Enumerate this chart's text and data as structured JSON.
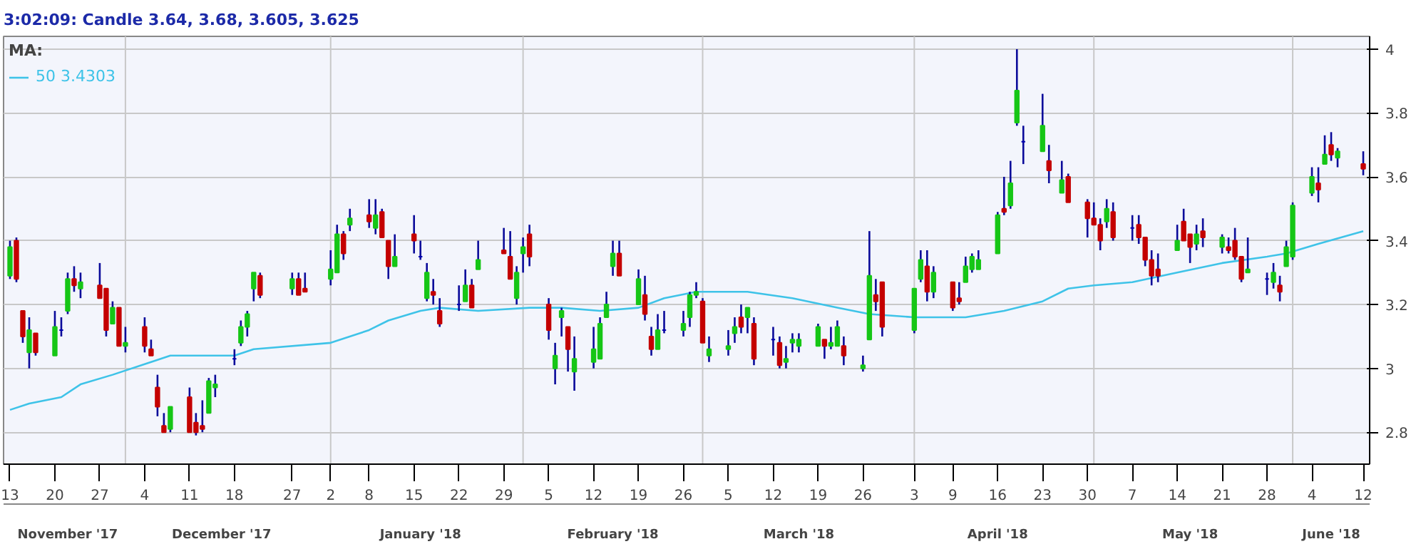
{
  "chart_data": {
    "type": "candlestick",
    "title": "3:02:09:  Candle 3.64, 3.68, 3.605, 3.625",
    "legend_title": "MA:",
    "legend": "top left",
    "x": [
      "2017-11-13",
      "2017-11-14",
      "2017-11-15",
      "2017-11-16",
      "2017-11-17",
      "2017-11-20",
      "2017-11-21",
      "2017-11-22",
      "2017-11-23",
      "2017-11-24",
      "2017-11-27",
      "2017-11-28",
      "2017-11-29",
      "2017-11-30",
      "2017-12-01",
      "2017-12-04",
      "2017-12-05",
      "2017-12-06",
      "2017-12-07",
      "2017-12-08",
      "2017-12-11",
      "2017-12-12",
      "2017-12-13",
      "2017-12-14",
      "2017-12-15",
      "2017-12-18",
      "2017-12-19",
      "2017-12-20",
      "2017-12-21",
      "2017-12-22",
      "2017-12-27",
      "2017-12-28",
      "2017-12-29",
      "2018-01-02",
      "2018-01-03",
      "2018-01-04",
      "2018-01-05",
      "2018-01-08",
      "2018-01-09",
      "2018-01-10",
      "2018-01-11",
      "2018-01-12",
      "2018-01-15",
      "2018-01-16",
      "2018-01-17",
      "2018-01-18",
      "2018-01-19",
      "2018-01-22",
      "2018-01-23",
      "2018-01-24",
      "2018-01-25",
      "2018-01-29",
      "2018-01-30",
      "2018-01-31",
      "2018-02-01",
      "2018-02-02",
      "2018-02-05",
      "2018-02-06",
      "2018-02-07",
      "2018-02-08",
      "2018-02-09",
      "2018-02-12",
      "2018-02-13",
      "2018-02-14",
      "2018-02-15",
      "2018-02-16",
      "2018-02-19",
      "2018-02-20",
      "2018-02-21",
      "2018-02-22",
      "2018-02-23",
      "2018-02-26",
      "2018-02-27",
      "2018-02-28",
      "2018-03-01",
      "2018-03-02",
      "2018-03-05",
      "2018-03-06",
      "2018-03-07",
      "2018-03-08",
      "2018-03-09",
      "2018-03-12",
      "2018-03-13",
      "2018-03-14",
      "2018-03-15",
      "2018-03-16",
      "2018-03-19",
      "2018-03-20",
      "2018-03-21",
      "2018-03-22",
      "2018-03-23",
      "2018-03-26",
      "2018-03-27",
      "2018-03-28",
      "2018-03-29",
      "2018-04-03",
      "2018-04-04",
      "2018-04-05",
      "2018-04-06",
      "2018-04-09",
      "2018-04-10",
      "2018-04-11",
      "2018-04-12",
      "2018-04-13",
      "2018-04-16",
      "2018-04-17",
      "2018-04-18",
      "2018-04-19",
      "2018-04-20",
      "2018-04-23",
      "2018-04-24",
      "2018-04-26",
      "2018-04-27",
      "2018-04-30",
      "2018-05-01",
      "2018-05-02",
      "2018-05-03",
      "2018-05-04",
      "2018-05-07",
      "2018-05-08",
      "2018-05-09",
      "2018-05-10",
      "2018-05-11",
      "2018-05-14",
      "2018-05-15",
      "2018-05-16",
      "2018-05-17",
      "2018-05-18",
      "2018-05-21",
      "2018-05-22",
      "2018-05-23",
      "2018-05-24",
      "2018-05-25",
      "2018-05-28",
      "2018-05-29",
      "2018-05-30",
      "2018-05-31",
      "2018-06-01",
      "2018-06-04",
      "2018-06-05",
      "2018-06-06",
      "2018-06-07",
      "2018-06-08",
      "2018-06-12"
    ],
    "ohlc": [
      [
        3.29,
        3.4,
        3.28,
        3.38
      ],
      [
        3.4,
        3.41,
        3.27,
        3.28
      ],
      [
        3.18,
        3.18,
        3.08,
        3.1
      ],
      [
        3.05,
        3.16,
        3.0,
        3.12
      ],
      [
        3.11,
        3.11,
        3.04,
        3.05
      ],
      [
        3.04,
        3.18,
        3.04,
        3.13
      ],
      [
        3.12,
        3.16,
        3.1,
        3.12
      ],
      [
        3.18,
        3.3,
        3.17,
        3.28
      ],
      [
        3.28,
        3.32,
        3.24,
        3.26
      ],
      [
        3.25,
        3.3,
        3.22,
        3.27
      ],
      [
        3.26,
        3.33,
        3.22,
        3.22
      ],
      [
        3.25,
        3.25,
        3.1,
        3.12
      ],
      [
        3.14,
        3.21,
        3.14,
        3.19
      ],
      [
        3.19,
        3.19,
        3.07,
        3.07
      ],
      [
        3.07,
        3.13,
        3.05,
        3.08
      ],
      [
        3.13,
        3.16,
        3.05,
        3.07
      ],
      [
        3.06,
        3.09,
        3.04,
        3.04
      ],
      [
        2.94,
        2.98,
        2.85,
        2.88
      ],
      [
        2.82,
        2.86,
        2.8,
        2.8
      ],
      [
        2.81,
        2.88,
        2.8,
        2.88
      ],
      [
        2.91,
        2.94,
        2.8,
        2.8
      ],
      [
        2.83,
        2.86,
        2.79,
        2.8
      ],
      [
        2.82,
        2.9,
        2.8,
        2.81
      ],
      [
        2.86,
        2.97,
        2.86,
        2.96
      ],
      [
        2.94,
        2.98,
        2.91,
        2.95
      ],
      [
        3.03,
        3.06,
        3.01,
        3.03
      ],
      [
        3.08,
        3.15,
        3.07,
        3.13
      ],
      [
        3.13,
        3.18,
        3.1,
        3.17
      ],
      [
        3.25,
        3.3,
        3.21,
        3.3
      ],
      [
        3.29,
        3.3,
        3.22,
        3.23
      ],
      [
        3.25,
        3.3,
        3.23,
        3.28
      ],
      [
        3.28,
        3.3,
        3.23,
        3.23
      ],
      [
        3.25,
        3.3,
        3.24,
        3.24
      ],
      [
        3.28,
        3.37,
        3.26,
        3.31
      ],
      [
        3.3,
        3.45,
        3.3,
        3.42
      ],
      [
        3.42,
        3.43,
        3.34,
        3.36
      ],
      [
        3.45,
        3.5,
        3.43,
        3.47
      ],
      [
        3.48,
        3.53,
        3.44,
        3.46
      ],
      [
        3.44,
        3.53,
        3.42,
        3.48
      ],
      [
        3.49,
        3.5,
        3.41,
        3.41
      ],
      [
        3.4,
        3.4,
        3.28,
        3.32
      ],
      [
        3.32,
        3.42,
        3.32,
        3.35
      ],
      [
        3.42,
        3.48,
        3.36,
        3.4
      ],
      [
        3.35,
        3.4,
        3.34,
        3.35
      ],
      [
        3.22,
        3.33,
        3.21,
        3.3
      ],
      [
        3.24,
        3.28,
        3.2,
        3.23
      ],
      [
        3.18,
        3.22,
        3.13,
        3.14
      ],
      [
        3.2,
        3.26,
        3.18,
        3.2
      ],
      [
        3.21,
        3.31,
        3.21,
        3.26
      ],
      [
        3.26,
        3.28,
        3.19,
        3.19
      ],
      [
        3.31,
        3.4,
        3.31,
        3.34
      ],
      [
        3.37,
        3.44,
        3.36,
        3.36
      ],
      [
        3.35,
        3.43,
        3.28,
        3.28
      ],
      [
        3.22,
        3.32,
        3.2,
        3.3
      ],
      [
        3.36,
        3.41,
        3.3,
        3.38
      ],
      [
        3.42,
        3.45,
        3.32,
        3.35
      ],
      [
        3.2,
        3.22,
        3.09,
        3.12
      ],
      [
        3.0,
        3.08,
        2.95,
        3.04
      ],
      [
        3.16,
        3.19,
        3.1,
        3.18
      ],
      [
        3.13,
        3.13,
        2.99,
        3.06
      ],
      [
        2.99,
        3.1,
        2.93,
        3.03
      ],
      [
        3.02,
        3.13,
        3.0,
        3.06
      ],
      [
        3.03,
        3.16,
        3.03,
        3.14
      ],
      [
        3.16,
        3.24,
        3.16,
        3.2
      ],
      [
        3.32,
        3.4,
        3.29,
        3.36
      ],
      [
        3.36,
        3.4,
        3.29,
        3.29
      ],
      [
        3.2,
        3.31,
        3.2,
        3.28
      ],
      [
        3.23,
        3.29,
        3.15,
        3.17
      ],
      [
        3.1,
        3.13,
        3.04,
        3.06
      ],
      [
        3.06,
        3.17,
        3.06,
        3.12
      ],
      [
        3.12,
        3.18,
        3.11,
        3.12
      ],
      [
        3.12,
        3.18,
        3.1,
        3.14
      ],
      [
        3.16,
        3.24,
        3.13,
        3.23
      ],
      [
        3.23,
        3.27,
        3.22,
        3.24
      ],
      [
        3.21,
        3.22,
        3.08,
        3.08
      ],
      [
        3.04,
        3.1,
        3.02,
        3.06
      ],
      [
        3.06,
        3.12,
        3.04,
        3.07
      ],
      [
        3.11,
        3.16,
        3.08,
        3.13
      ],
      [
        3.16,
        3.2,
        3.11,
        3.13
      ],
      [
        3.16,
        3.19,
        3.11,
        3.19
      ],
      [
        3.14,
        3.16,
        3.01,
        3.03
      ],
      [
        3.09,
        3.13,
        3.04,
        3.09
      ],
      [
        3.08,
        3.1,
        3.0,
        3.01
      ],
      [
        3.02,
        3.07,
        3.0,
        3.03
      ],
      [
        3.08,
        3.11,
        3.05,
        3.09
      ],
      [
        3.07,
        3.11,
        3.05,
        3.09
      ],
      [
        3.07,
        3.14,
        3.07,
        3.13
      ],
      [
        3.09,
        3.09,
        3.03,
        3.07
      ],
      [
        3.07,
        3.13,
        3.06,
        3.08
      ],
      [
        3.07,
        3.15,
        3.07,
        3.13
      ],
      [
        3.07,
        3.1,
        3.01,
        3.04
      ],
      [
        3.0,
        3.04,
        2.99,
        3.01
      ],
      [
        3.09,
        3.43,
        3.09,
        3.29
      ],
      [
        3.23,
        3.28,
        3.18,
        3.21
      ],
      [
        3.27,
        3.27,
        3.1,
        3.13
      ],
      [
        3.12,
        3.25,
        3.11,
        3.25
      ],
      [
        3.28,
        3.37,
        3.27,
        3.34
      ],
      [
        3.32,
        3.37,
        3.21,
        3.24
      ],
      [
        3.24,
        3.32,
        3.22,
        3.3
      ],
      [
        3.27,
        3.27,
        3.18,
        3.19
      ],
      [
        3.22,
        3.27,
        3.2,
        3.21
      ],
      [
        3.27,
        3.35,
        3.27,
        3.32
      ],
      [
        3.31,
        3.36,
        3.3,
        3.35
      ],
      [
        3.31,
        3.37,
        3.31,
        3.34
      ],
      [
        3.36,
        3.49,
        3.36,
        3.48
      ],
      [
        3.5,
        3.6,
        3.48,
        3.49
      ],
      [
        3.51,
        3.65,
        3.5,
        3.58
      ],
      [
        3.77,
        4.0,
        3.76,
        3.87
      ],
      [
        3.71,
        3.76,
        3.64,
        3.71
      ],
      [
        3.68,
        3.86,
        3.68,
        3.76
      ],
      [
        3.65,
        3.7,
        3.58,
        3.62
      ],
      [
        3.55,
        3.65,
        3.55,
        3.59
      ],
      [
        3.6,
        3.61,
        3.52,
        3.52
      ],
      [
        3.52,
        3.53,
        3.41,
        3.47
      ],
      [
        3.47,
        3.52,
        3.45,
        3.45
      ],
      [
        3.45,
        3.47,
        3.37,
        3.4
      ],
      [
        3.46,
        3.53,
        3.44,
        3.5
      ],
      [
        3.49,
        3.52,
        3.4,
        3.41
      ],
      [
        3.44,
        3.48,
        3.4,
        3.44
      ],
      [
        3.45,
        3.48,
        3.39,
        3.41
      ],
      [
        3.41,
        3.41,
        3.32,
        3.34
      ],
      [
        3.34,
        3.37,
        3.26,
        3.29
      ],
      [
        3.31,
        3.36,
        3.27,
        3.29
      ],
      [
        3.37,
        3.45,
        3.37,
        3.4
      ],
      [
        3.46,
        3.5,
        3.4,
        3.4
      ],
      [
        3.42,
        3.42,
        3.33,
        3.38
      ],
      [
        3.39,
        3.45,
        3.37,
        3.42
      ],
      [
        3.43,
        3.47,
        3.38,
        3.41
      ],
      [
        3.38,
        3.42,
        3.36,
        3.41
      ],
      [
        3.38,
        3.41,
        3.36,
        3.37
      ],
      [
        3.4,
        3.44,
        3.34,
        3.35
      ],
      [
        3.35,
        3.35,
        3.27,
        3.28
      ],
      [
        3.3,
        3.41,
        3.3,
        3.31
      ],
      [
        3.28,
        3.3,
        3.23,
        3.28
      ],
      [
        3.27,
        3.33,
        3.25,
        3.3
      ],
      [
        3.26,
        3.29,
        3.21,
        3.24
      ],
      [
        3.32,
        3.4,
        3.32,
        3.38
      ],
      [
        3.35,
        3.52,
        3.34,
        3.51
      ],
      [
        3.55,
        3.63,
        3.54,
        3.6
      ],
      [
        3.58,
        3.63,
        3.52,
        3.56
      ],
      [
        3.64,
        3.73,
        3.64,
        3.67
      ],
      [
        3.7,
        3.74,
        3.65,
        3.67
      ],
      [
        3.66,
        3.69,
        3.63,
        3.68
      ],
      [
        3.64,
        3.68,
        3.605,
        3.625
      ]
    ],
    "colors": [
      "#16c616",
      "#c40000",
      "#c40000",
      "#16c616",
      "#c40000",
      "#16c616",
      "#0000b0",
      "#16c616",
      "#c40000",
      "#16c616",
      "#c40000",
      "#c40000",
      "#16c616",
      "#c40000",
      "#16c616",
      "#c40000",
      "#c40000",
      "#c40000",
      "#c40000",
      "#16c616",
      "#c40000",
      "#c40000",
      "#c40000",
      "#16c616",
      "#16c616",
      "#0000b0",
      "#16c616",
      "#16c616",
      "#16c616",
      "#c40000",
      "#16c616",
      "#c40000",
      "#c40000",
      "#16c616",
      "#16c616",
      "#c40000",
      "#16c616",
      "#c40000",
      "#16c616",
      "#c40000",
      "#c40000",
      "#16c616",
      "#c40000",
      "#0000b0",
      "#16c616",
      "#c40000",
      "#c40000",
      "#0000b0",
      "#16c616",
      "#c40000",
      "#16c616",
      "#c40000",
      "#c40000",
      "#16c616",
      "#16c616",
      "#c40000",
      "#c40000",
      "#16c616",
      "#16c616",
      "#c40000",
      "#16c616",
      "#16c616",
      "#16c616",
      "#16c616",
      "#16c616",
      "#c40000",
      "#16c616",
      "#c40000",
      "#c40000",
      "#16c616",
      "#0000b0",
      "#16c616",
      "#16c616",
      "#16c616",
      "#c40000",
      "#16c616",
      "#16c616",
      "#16c616",
      "#c40000",
      "#16c616",
      "#c40000",
      "#0000b0",
      "#c40000",
      "#16c616",
      "#16c616",
      "#16c616",
      "#16c616",
      "#c40000",
      "#16c616",
      "#16c616",
      "#c40000",
      "#16c616",
      "#16c616",
      "#c40000",
      "#c40000",
      "#16c616",
      "#16c616",
      "#c40000",
      "#16c616",
      "#c40000",
      "#c40000",
      "#16c616",
      "#16c616",
      "#16c616",
      "#16c616",
      "#c40000",
      "#16c616",
      "#16c616",
      "#0000b0",
      "#16c616",
      "#c40000",
      "#16c616",
      "#c40000",
      "#c40000",
      "#c40000",
      "#c40000",
      "#16c616",
      "#c40000",
      "#0000b0",
      "#c40000",
      "#c40000",
      "#c40000",
      "#c40000",
      "#16c616",
      "#c40000",
      "#c40000",
      "#16c616",
      "#c40000",
      "#16c616",
      "#c40000",
      "#c40000",
      "#c40000",
      "#16c616",
      "#0000b0",
      "#16c616",
      "#c40000",
      "#16c616",
      "#16c616",
      "#16c616",
      "#c40000",
      "#16c616",
      "#c40000",
      "#16c616",
      "#c40000"
    ],
    "series": [
      {
        "type": "line",
        "name": "50 3.4303",
        "color": "#3ec3e8",
        "x": [
          "2017-11-13",
          "2017-11-16",
          "2017-11-21",
          "2017-11-24",
          "2017-11-29",
          "2017-12-05",
          "2017-12-08",
          "2017-12-18",
          "2017-12-21",
          "2018-01-02",
          "2018-01-08",
          "2018-01-11",
          "2018-01-16",
          "2018-01-19",
          "2018-01-25",
          "2018-02-02",
          "2018-02-07",
          "2018-02-13",
          "2018-02-19",
          "2018-02-23",
          "2018-02-28",
          "2018-03-08",
          "2018-03-15",
          "2018-03-22",
          "2018-03-27",
          "2018-04-03",
          "2018-04-11",
          "2018-04-17",
          "2018-04-23",
          "2018-04-27",
          "2018-05-01",
          "2018-05-07",
          "2018-05-14",
          "2018-05-21",
          "2018-05-28",
          "2018-05-31",
          "2018-06-05",
          "2018-06-12"
        ],
        "values": [
          2.87,
          2.89,
          2.91,
          2.95,
          2.98,
          3.02,
          3.04,
          3.04,
          3.06,
          3.08,
          3.12,
          3.15,
          3.18,
          3.19,
          3.18,
          3.19,
          3.19,
          3.18,
          3.19,
          3.22,
          3.24,
          3.24,
          3.22,
          3.19,
          3.17,
          3.16,
          3.16,
          3.18,
          3.21,
          3.25,
          3.26,
          3.27,
          3.3,
          3.33,
          3.35,
          3.36,
          3.39,
          3.43
        ]
      }
    ],
    "ylim": [
      2.7,
      4.04
    ],
    "yticks": [
      2.8,
      3,
      3.2,
      3.4,
      3.6,
      3.8,
      4
    ],
    "xticks": [
      {
        "value": "2017-11-13",
        "label": "13"
      },
      {
        "value": "2017-11-20",
        "label": "20"
      },
      {
        "value": "2017-11-27",
        "label": "27"
      },
      {
        "value": "2017-12-04",
        "label": "4"
      },
      {
        "value": "2017-12-11",
        "label": "11"
      },
      {
        "value": "2017-12-18",
        "label": "18"
      },
      {
        "value": "2017-12-27",
        "label": "27"
      },
      {
        "value": "2018-01-02",
        "label": "2"
      },
      {
        "value": "2018-01-08",
        "label": "8"
      },
      {
        "value": "2018-01-15",
        "label": "15"
      },
      {
        "value": "2018-01-22",
        "label": "22"
      },
      {
        "value": "2018-01-29",
        "label": "29"
      },
      {
        "value": "2018-02-05",
        "label": "5"
      },
      {
        "value": "2018-02-12",
        "label": "12"
      },
      {
        "value": "2018-02-19",
        "label": "19"
      },
      {
        "value": "2018-02-26",
        "label": "26"
      },
      {
        "value": "2018-03-05",
        "label": "5"
      },
      {
        "value": "2018-03-12",
        "label": "12"
      },
      {
        "value": "2018-03-19",
        "label": "19"
      },
      {
        "value": "2018-03-26",
        "label": "26"
      },
      {
        "value": "2018-04-03",
        "label": "3"
      },
      {
        "value": "2018-04-09",
        "label": "9"
      },
      {
        "value": "2018-04-16",
        "label": "16"
      },
      {
        "value": "2018-04-23",
        "label": "23"
      },
      {
        "value": "2018-04-30",
        "label": "30"
      },
      {
        "value": "2018-05-07",
        "label": "7"
      },
      {
        "value": "2018-05-14",
        "label": "14"
      },
      {
        "value": "2018-05-21",
        "label": "21"
      },
      {
        "value": "2018-05-28",
        "label": "28"
      },
      {
        "value": "2018-06-04",
        "label": "4"
      },
      {
        "value": "2018-06-12",
        "label": "12"
      }
    ],
    "xlim": [
      "2017-11-12",
      "2018-06-13"
    ],
    "grid": "y",
    "x2lim": [
      "2017-11-12",
      "2018-06-13"
    ],
    "x2ticks": [
      {
        "value": "2017-11-22",
        "label": "November '17"
      },
      {
        "value": "2017-12-16",
        "label": "December '17"
      },
      {
        "value": "2018-01-16",
        "label": "January '18"
      },
      {
        "value": "2018-02-15",
        "label": "February '18"
      },
      {
        "value": "2018-03-16",
        "label": "March '18"
      },
      {
        "value": "2018-04-16",
        "label": "April '18"
      },
      {
        "value": "2018-05-16",
        "label": "May '18"
      },
      {
        "value": "2018-06-07",
        "label": "June '18"
      }
    ],
    "ref_lines": [
      {
        "axis": "x",
        "value": "2017-12-01",
        "color": "#c8c8c8"
      },
      {
        "axis": "x",
        "value": "2018-01-02",
        "color": "#c8c8c8"
      },
      {
        "axis": "x",
        "value": "2018-02-01",
        "color": "#c8c8c8"
      },
      {
        "axis": "x",
        "value": "2018-03-01",
        "color": "#c8c8c8"
      },
      {
        "axis": "x",
        "value": "2018-04-03",
        "color": "#c8c8c8"
      },
      {
        "axis": "x",
        "value": "2018-05-01",
        "color": "#c8c8c8"
      },
      {
        "axis": "x",
        "value": "2018-06-01",
        "color": "#c8c8c8"
      }
    ]
  }
}
